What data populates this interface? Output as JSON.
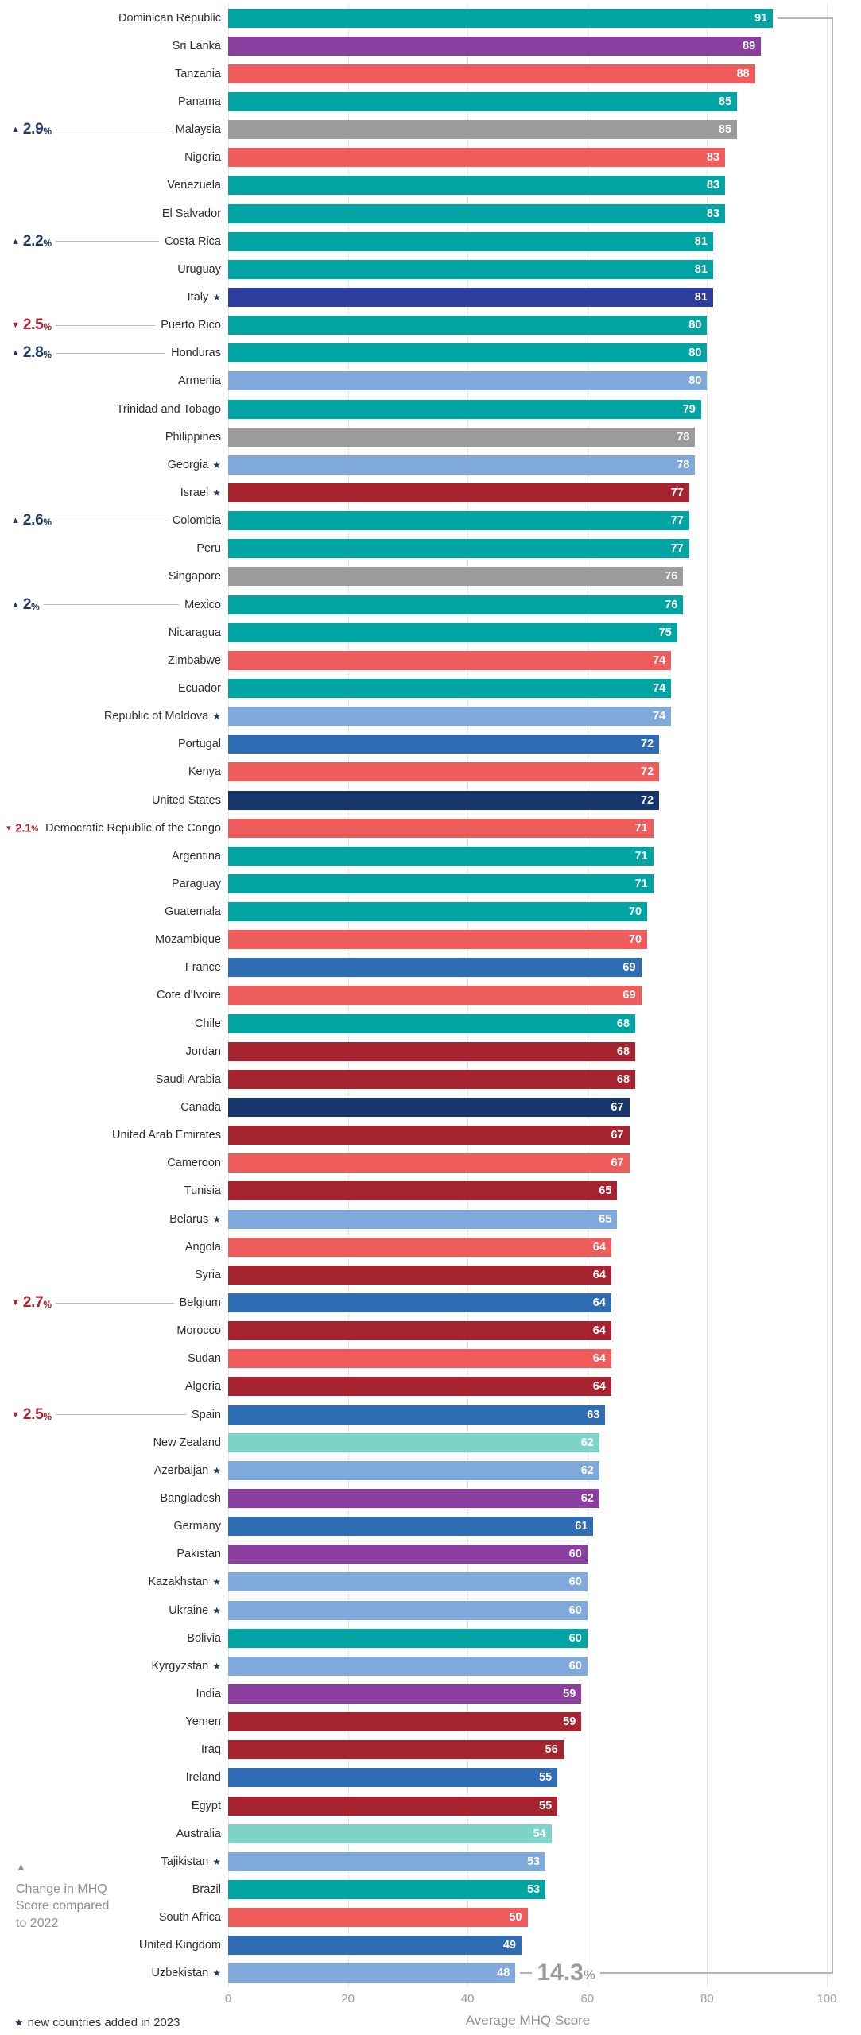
{
  "chart_data": {
    "type": "bar",
    "orientation": "horizontal",
    "xlabel": "Average MHQ Score",
    "xlim": [
      0,
      100
    ],
    "xticks": [
      0,
      20,
      40,
      60,
      80,
      100
    ],
    "symbols": {
      "up_triangle": "▲",
      "down_triangle": "▼",
      "star": "★",
      "percent": "%"
    },
    "legend": {
      "change_text": "Change in MHQ Score compared to 2022",
      "new_text": "new countries added in 2023"
    },
    "gap_annotation": {
      "value": "14.3"
    },
    "colors": {
      "teal": "#00A5A3",
      "purple": "#8A3FA0",
      "coral": "#EE5C5C",
      "gray": "#9B9B9B",
      "europe_blue": "#2E6CB4",
      "italy_blue": "#2F3E9E",
      "navy": "#16366B",
      "dark_red": "#A6242F",
      "light_blue": "#7FA9DB",
      "light_teal": "#7CD4C8",
      "up_change": "#1F3968",
      "down_change": "#A8242F",
      "bracket_gray": "#B5B5B5"
    },
    "countries": [
      {
        "name": "Dominican Republic",
        "value": 91,
        "group": "teal"
      },
      {
        "name": "Sri Lanka",
        "value": 89,
        "group": "purple"
      },
      {
        "name": "Tanzania",
        "value": 88,
        "group": "coral"
      },
      {
        "name": "Panama",
        "value": 85,
        "group": "teal"
      },
      {
        "name": "Malaysia",
        "value": 85,
        "group": "gray",
        "change": {
          "dir": "up",
          "value": "2.9"
        }
      },
      {
        "name": "Nigeria",
        "value": 83,
        "group": "coral"
      },
      {
        "name": "Venezuela",
        "value": 83,
        "group": "teal"
      },
      {
        "name": "El Salvador",
        "value": 83,
        "group": "teal"
      },
      {
        "name": "Costa Rica",
        "value": 81,
        "group": "teal",
        "change": {
          "dir": "up",
          "value": "2.2"
        }
      },
      {
        "name": "Uruguay",
        "value": 81,
        "group": "teal"
      },
      {
        "name": "Italy",
        "value": 81,
        "group": "italy_blue",
        "new2023": true
      },
      {
        "name": "Puerto Rico",
        "value": 80,
        "group": "teal",
        "change": {
          "dir": "down",
          "value": "2.5"
        }
      },
      {
        "name": "Honduras",
        "value": 80,
        "group": "teal",
        "change": {
          "dir": "up",
          "value": "2.8"
        }
      },
      {
        "name": "Armenia",
        "value": 80,
        "group": "light_blue"
      },
      {
        "name": "Trinidad and Tobago",
        "value": 79,
        "group": "teal"
      },
      {
        "name": "Philippines",
        "value": 78,
        "group": "gray"
      },
      {
        "name": "Georgia",
        "value": 78,
        "group": "light_blue",
        "new2023": true
      },
      {
        "name": "Israel",
        "value": 77,
        "group": "dark_red",
        "new2023": true
      },
      {
        "name": "Colombia",
        "value": 77,
        "group": "teal",
        "change": {
          "dir": "up",
          "value": "2.6"
        }
      },
      {
        "name": "Peru",
        "value": 77,
        "group": "teal"
      },
      {
        "name": "Singapore",
        "value": 76,
        "group": "gray"
      },
      {
        "name": "Mexico",
        "value": 76,
        "group": "teal",
        "change": {
          "dir": "up",
          "value": "2"
        }
      },
      {
        "name": "Nicaragua",
        "value": 75,
        "group": "teal"
      },
      {
        "name": "Zimbabwe",
        "value": 74,
        "group": "coral"
      },
      {
        "name": "Ecuador",
        "value": 74,
        "group": "teal"
      },
      {
        "name": "Republic of Moldova",
        "value": 74,
        "group": "light_blue",
        "new2023": true
      },
      {
        "name": "Portugal",
        "value": 72,
        "group": "europe_blue"
      },
      {
        "name": "Kenya",
        "value": 72,
        "group": "coral"
      },
      {
        "name": "United States",
        "value": 72,
        "group": "navy"
      },
      {
        "name": "Democratic Republic of the Congo",
        "value": 71,
        "group": "coral",
        "change": {
          "dir": "down",
          "value": "2.1"
        }
      },
      {
        "name": "Argentina",
        "value": 71,
        "group": "teal"
      },
      {
        "name": "Paraguay",
        "value": 71,
        "group": "teal"
      },
      {
        "name": "Guatemala",
        "value": 70,
        "group": "teal"
      },
      {
        "name": "Mozambique",
        "value": 70,
        "group": "coral"
      },
      {
        "name": "France",
        "value": 69,
        "group": "europe_blue"
      },
      {
        "name": "Cote d'Ivoire",
        "value": 69,
        "group": "coral"
      },
      {
        "name": "Chile",
        "value": 68,
        "group": "teal"
      },
      {
        "name": "Jordan",
        "value": 68,
        "group": "dark_red"
      },
      {
        "name": "Saudi Arabia",
        "value": 68,
        "group": "dark_red"
      },
      {
        "name": "Canada",
        "value": 67,
        "group": "navy"
      },
      {
        "name": "United Arab Emirates",
        "value": 67,
        "group": "dark_red"
      },
      {
        "name": "Cameroon",
        "value": 67,
        "group": "coral"
      },
      {
        "name": "Tunisia",
        "value": 65,
        "group": "dark_red"
      },
      {
        "name": "Belarus",
        "value": 65,
        "group": "light_blue",
        "new2023": true
      },
      {
        "name": "Angola",
        "value": 64,
        "group": "coral"
      },
      {
        "name": "Syria",
        "value": 64,
        "group": "dark_red"
      },
      {
        "name": "Belgium",
        "value": 64,
        "group": "europe_blue",
        "change": {
          "dir": "down",
          "value": "2.7"
        }
      },
      {
        "name": "Morocco",
        "value": 64,
        "group": "dark_red"
      },
      {
        "name": "Sudan",
        "value": 64,
        "group": "coral"
      },
      {
        "name": "Algeria",
        "value": 64,
        "group": "dark_red"
      },
      {
        "name": "Spain",
        "value": 63,
        "group": "europe_blue",
        "change": {
          "dir": "down",
          "value": "2.5"
        }
      },
      {
        "name": "New Zealand",
        "value": 62,
        "group": "light_teal"
      },
      {
        "name": "Azerbaijan",
        "value": 62,
        "group": "light_blue",
        "new2023": true
      },
      {
        "name": "Bangladesh",
        "value": 62,
        "group": "purple"
      },
      {
        "name": "Germany",
        "value": 61,
        "group": "europe_blue"
      },
      {
        "name": "Pakistan",
        "value": 60,
        "group": "purple"
      },
      {
        "name": "Kazakhstan",
        "value": 60,
        "group": "light_blue",
        "new2023": true
      },
      {
        "name": "Ukraine",
        "value": 60,
        "group": "light_blue",
        "new2023": true
      },
      {
        "name": "Bolivia",
        "value": 60,
        "group": "teal"
      },
      {
        "name": "Kyrgyzstan",
        "value": 60,
        "group": "light_blue",
        "new2023": true
      },
      {
        "name": "India",
        "value": 59,
        "group": "purple"
      },
      {
        "name": "Yemen",
        "value": 59,
        "group": "dark_red"
      },
      {
        "name": "Iraq",
        "value": 56,
        "group": "dark_red"
      },
      {
        "name": "Ireland",
        "value": 55,
        "group": "europe_blue"
      },
      {
        "name": "Egypt",
        "value": 55,
        "group": "dark_red"
      },
      {
        "name": "Australia",
        "value": 54,
        "group": "light_teal"
      },
      {
        "name": "Tajikistan",
        "value": 53,
        "group": "light_blue",
        "new2023": true
      },
      {
        "name": "Brazil",
        "value": 53,
        "group": "teal"
      },
      {
        "name": "South Africa",
        "value": 50,
        "group": "coral"
      },
      {
        "name": "United Kingdom",
        "value": 49,
        "group": "europe_blue"
      },
      {
        "name": "Uzbekistan",
        "value": 48,
        "group": "light_blue",
        "new2023": true
      }
    ]
  }
}
